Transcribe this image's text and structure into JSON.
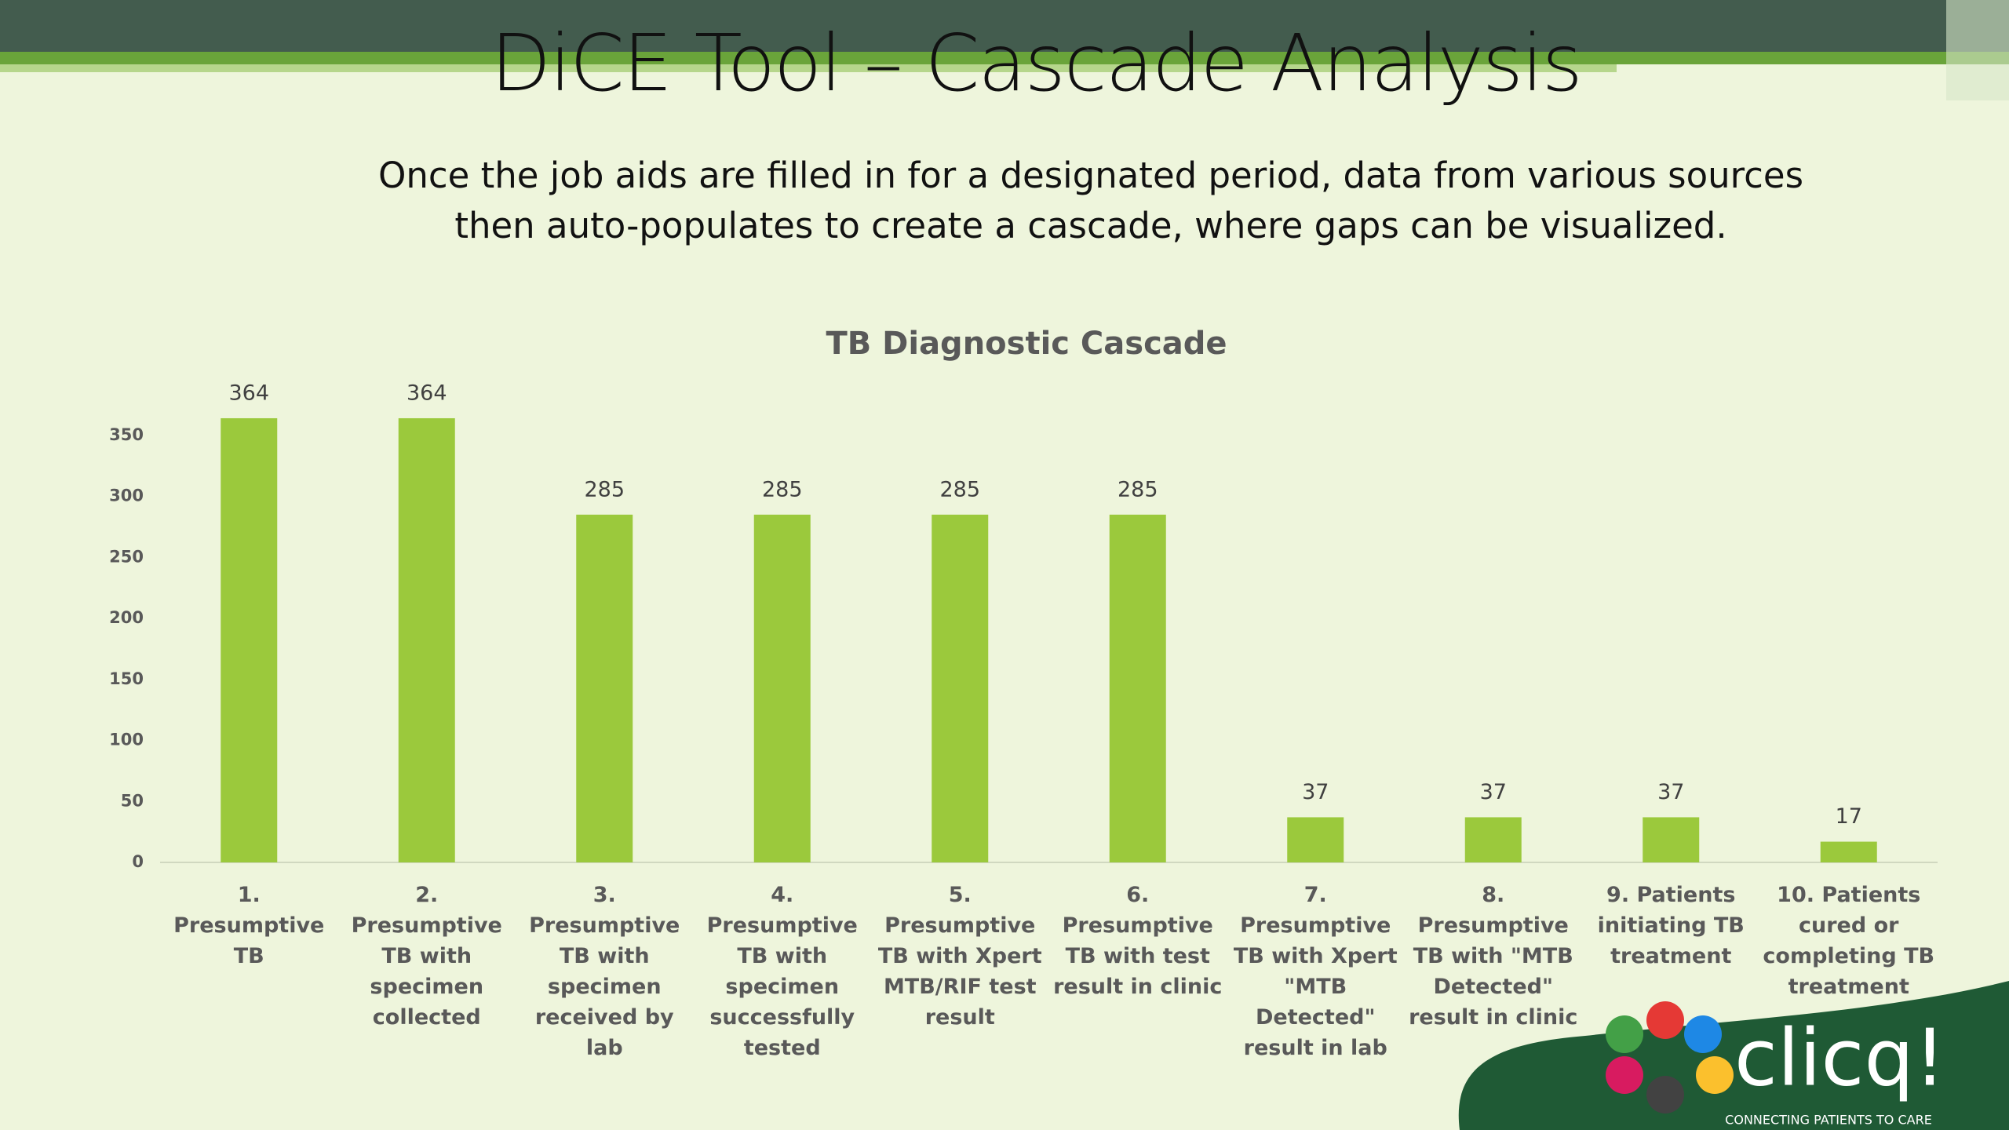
{
  "slide": {
    "title": "DiCE Tool – Cascade Analysis",
    "description": "Once the job aids are filled in for a designated period, data from various sources then auto-populates to create a cascade, where gaps can be visualized.",
    "logo": {
      "name": "clicq!",
      "tagline": "CONNECTING PATIENTS TO CARE"
    }
  },
  "chart_data": {
    "type": "bar",
    "title": "TB Diagnostic Cascade",
    "categories": [
      "1. Presumptive TB",
      "2. Presumptive TB with specimen collected",
      "3. Presumptive TB with specimen received by lab",
      "4. Presumptive TB with specimen successfully tested",
      "5. Presumptive TB with Xpert MTB/RIF test result",
      "6. Presumptive TB with test result in clinic",
      "7. Presumptive TB with Xpert \"MTB Detected\" result in lab",
      "8. Presumptive TB with \"MTB Detected\" result in clinic",
      "9. Patients initiating TB treatment",
      "10. Patients cured or completing TB treatment"
    ],
    "values": [
      364,
      364,
      285,
      285,
      285,
      285,
      37,
      37,
      37,
      17
    ],
    "color": "#9bc93c",
    "ylim": [
      0,
      400
    ],
    "yticks": [
      0,
      50,
      100,
      150,
      200,
      250,
      300,
      350
    ],
    "grid": false
  }
}
